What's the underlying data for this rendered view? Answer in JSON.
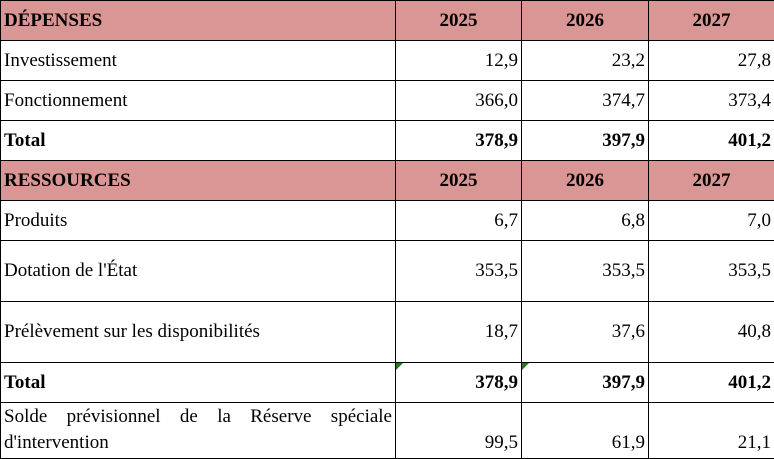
{
  "depenses": {
    "header": {
      "label": "DÉPENSES",
      "y2025": "2025",
      "y2026": "2026",
      "y2027": "2027"
    },
    "rows": [
      {
        "label": "Investissement",
        "v2025": "12,9",
        "v2026": "23,2",
        "v2027": "27,8"
      },
      {
        "label": "Fonctionnement",
        "v2025": "366,0",
        "v2026": "374,7",
        "v2027": "373,4"
      }
    ],
    "total": {
      "label": "Total",
      "v2025": "378,9",
      "v2026": "397,9",
      "v2027": "401,2"
    }
  },
  "ressources": {
    "header": {
      "label": "RESSOURCES",
      "y2025": "2025",
      "y2026": "2026",
      "y2027": "2027"
    },
    "rows": [
      {
        "label": "Produits",
        "v2025": "6,7",
        "v2026": "6,8",
        "v2027": "7,0"
      },
      {
        "label": "Dotation de l'État",
        "v2025": "353,5",
        "v2026": "353,5",
        "v2027": "353,5"
      },
      {
        "label": "Prélèvement sur les disponibilités",
        "v2025": "18,7",
        "v2026": "37,6",
        "v2027": "40,8"
      }
    ],
    "total": {
      "label": "Total",
      "v2025": "378,9",
      "v2026": "397,9",
      "v2027": "401,2"
    }
  },
  "solde": {
    "label": "Solde prévisionnel de la Réserve spéciale d'intervention",
    "v2025": "99,5",
    "v2026": "61,9",
    "v2027": "21,1"
  },
  "colors": {
    "header_background": "#d99694",
    "comment_marker": "#1e7b1e"
  }
}
